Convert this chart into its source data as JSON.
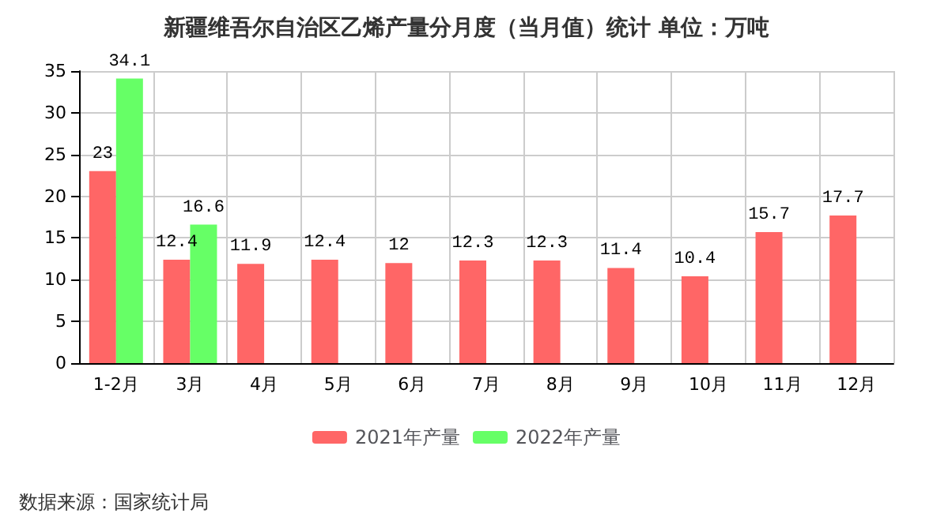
{
  "chart_data": {
    "type": "bar",
    "title": "新疆维吾尔自治区乙烯产量分月度（当月值）统计 单位：万吨",
    "categories": [
      "1-2月",
      "3月",
      "4月",
      "5月",
      "6月",
      "7月",
      "8月",
      "9月",
      "10月",
      "11月",
      "12月"
    ],
    "series": [
      {
        "name": "2021年产量",
        "color": "#ff6666",
        "values": [
          23,
          12.4,
          11.9,
          12.4,
          12,
          12.3,
          12.3,
          11.4,
          10.4,
          15.7,
          17.7
        ]
      },
      {
        "name": "2022年产量",
        "color": "#66ff66",
        "values": [
          34.1,
          16.6,
          null,
          null,
          null,
          null,
          null,
          null,
          null,
          null,
          null
        ]
      }
    ],
    "ylim": [
      0,
      35
    ],
    "yticks": [
      0,
      5,
      10,
      15,
      20,
      25,
      30,
      35
    ],
    "grid": true,
    "legend": "bottom",
    "data_labels": true,
    "annotations": [
      "数据来源：国家统计局"
    ]
  }
}
